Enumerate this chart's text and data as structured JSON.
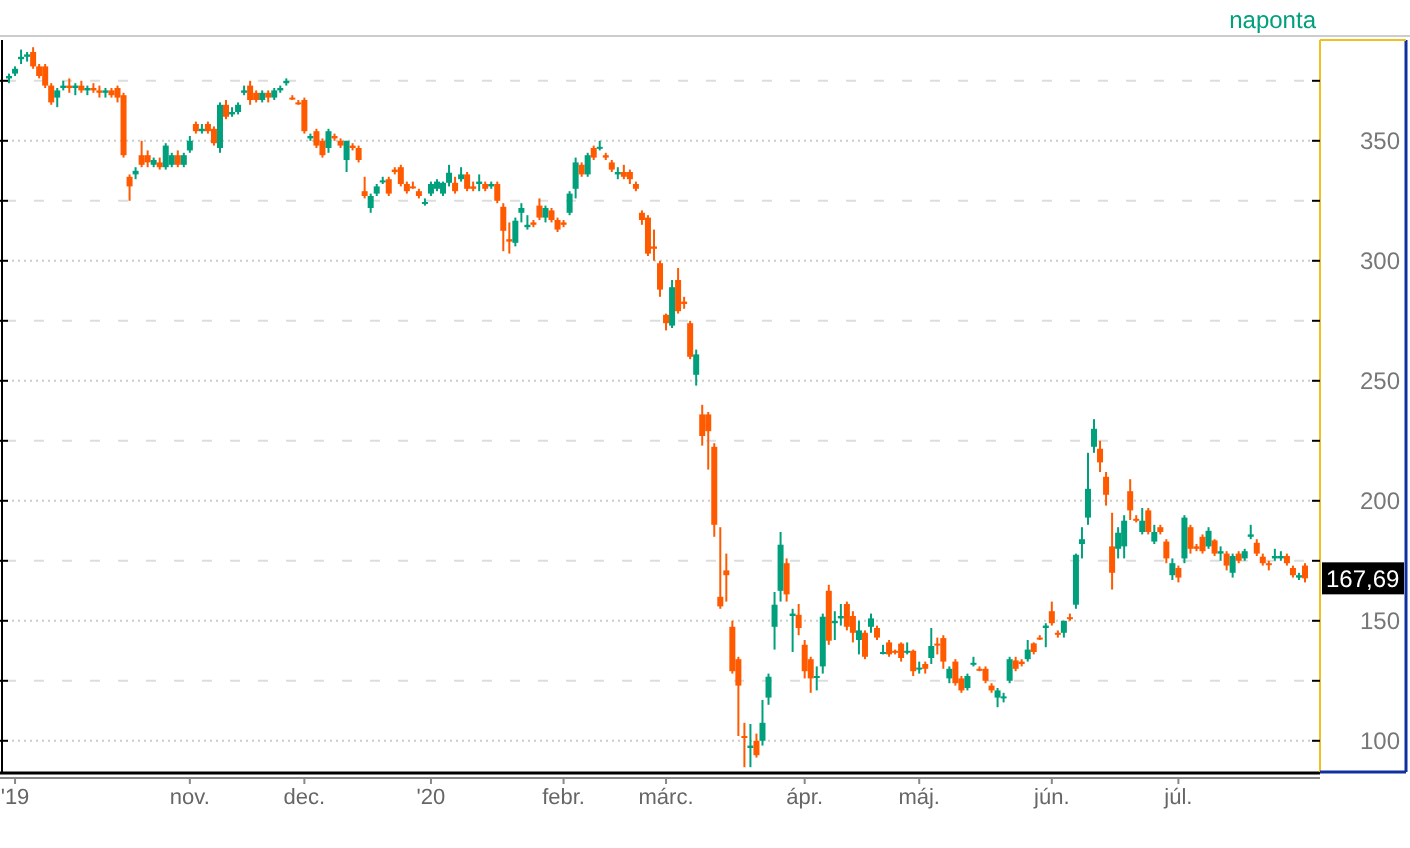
{
  "chart_data": {
    "type": "candlestick",
    "subtitle": "naponta",
    "categories": [
      null,
      "'19",
      null,
      null,
      null,
      null,
      null,
      null,
      null,
      null,
      null,
      null,
      null,
      null,
      null,
      null,
      null,
      null,
      null,
      null,
      null,
      null,
      null,
      null,
      null,
      null,
      null,
      null,
      null,
      null,
      "nov.",
      null,
      null,
      null,
      null,
      null,
      null,
      null,
      null,
      null,
      null,
      null,
      null,
      null,
      null,
      null,
      null,
      null,
      null,
      "dec.",
      null,
      null,
      null,
      null,
      null,
      null,
      null,
      null,
      null,
      null,
      null,
      null,
      null,
      null,
      null,
      null,
      null,
      null,
      null,
      null,
      "'20",
      null,
      null,
      null,
      null,
      null,
      null,
      null,
      null,
      null,
      null,
      null,
      null,
      null,
      null,
      null,
      null,
      null,
      null,
      null,
      null,
      null,
      "febr.",
      null,
      null,
      null,
      null,
      null,
      null,
      null,
      null,
      null,
      null,
      null,
      null,
      null,
      null,
      null,
      null,
      "márc.",
      null,
      null,
      null,
      null,
      null,
      null,
      null,
      null,
      null,
      null,
      null,
      null,
      null,
      null,
      null,
      null,
      null,
      null,
      null,
      null,
      null,
      null,
      "ápr.",
      null,
      null,
      null,
      null,
      null,
      null,
      null,
      null,
      null,
      null,
      null,
      null,
      null,
      null,
      null,
      null,
      null,
      null,
      "máj.",
      null,
      null,
      null,
      null,
      null,
      null,
      null,
      null,
      null,
      null,
      null,
      null,
      null,
      null,
      null,
      null,
      null,
      null,
      null,
      null,
      null,
      "jún.",
      null,
      null,
      null,
      null,
      null,
      null,
      null,
      null,
      null,
      null,
      null,
      null,
      null,
      null,
      null,
      null,
      null,
      null,
      null,
      null,
      "júl.",
      null,
      null,
      null,
      null,
      null,
      null,
      null,
      null,
      null,
      null,
      null,
      null,
      null,
      null,
      null,
      null,
      null,
      null,
      null,
      null,
      null
    ],
    "ohlc": [
      [
        376,
        378,
        374,
        377
      ],
      [
        378,
        381,
        377,
        380
      ],
      [
        384,
        388,
        382,
        385
      ],
      [
        385,
        387,
        383,
        386
      ],
      [
        387,
        389,
        380,
        381
      ],
      [
        381,
        382,
        376,
        377
      ],
      [
        381,
        382,
        372,
        373
      ],
      [
        373,
        374,
        365,
        366
      ],
      [
        368,
        372,
        364,
        371
      ],
      [
        372,
        375,
        371,
        373
      ],
      [
        373,
        376,
        370,
        372
      ],
      [
        372,
        374,
        369,
        373
      ],
      [
        373,
        375,
        370,
        371
      ],
      [
        371,
        373,
        369,
        372
      ],
      [
        372,
        374,
        370,
        371
      ],
      [
        371,
        373,
        368,
        370
      ],
      [
        370,
        372,
        368,
        371
      ],
      [
        371,
        372,
        368,
        369
      ],
      [
        372,
        373,
        366,
        368
      ],
      [
        369,
        370,
        343,
        344
      ],
      [
        335,
        336,
        325,
        331
      ],
      [
        336,
        339,
        334,
        337.5
      ],
      [
        344,
        350,
        339,
        340
      ],
      [
        344,
        346,
        339,
        341
      ],
      [
        340,
        343,
        339,
        342
      ],
      [
        341,
        343,
        338,
        339
      ],
      [
        339,
        349,
        338,
        348
      ],
      [
        340,
        345,
        339,
        344
      ],
      [
        344,
        346,
        339,
        340
      ],
      [
        340,
        345,
        339,
        344
      ],
      [
        346,
        352,
        345,
        350
      ],
      [
        357,
        358,
        353,
        354
      ],
      [
        354,
        357,
        353,
        355
      ],
      [
        357,
        358,
        353,
        354
      ],
      [
        355,
        356,
        348,
        349
      ],
      [
        347,
        366,
        345,
        365
      ],
      [
        365,
        367,
        359,
        360
      ],
      [
        361,
        364,
        360,
        362
      ],
      [
        362,
        366,
        361,
        365
      ],
      [
        370,
        373,
        369,
        371
      ],
      [
        373,
        375,
        365,
        367
      ],
      [
        370,
        371,
        366,
        367
      ],
      [
        367,
        371,
        366,
        370
      ],
      [
        370,
        371,
        366,
        368
      ],
      [
        368,
        372,
        367,
        371
      ],
      [
        371,
        373,
        370,
        372
      ],
      [
        374,
        376,
        373,
        375
      ],
      [
        368,
        369,
        367,
        367.5
      ],
      [
        366,
        367,
        365,
        365.5
      ],
      [
        367,
        368,
        353,
        354
      ],
      [
        351,
        353,
        350,
        352
      ],
      [
        354,
        355,
        347,
        348
      ],
      [
        350,
        351,
        343,
        344
      ],
      [
        347,
        355,
        345,
        354
      ],
      [
        352,
        353,
        350,
        351
      ],
      [
        350,
        351,
        347,
        348
      ],
      [
        342,
        350,
        337,
        350
      ],
      [
        348,
        349,
        346,
        347
      ],
      [
        347,
        348,
        341,
        342
      ],
      [
        329,
        335,
        326,
        327
      ],
      [
        322,
        328,
        320,
        327
      ],
      [
        328,
        332,
        327,
        331
      ],
      [
        333,
        335,
        332,
        333.5
      ],
      [
        334,
        335,
        327,
        328
      ],
      [
        338,
        339,
        336,
        337
      ],
      [
        339,
        340,
        331,
        332
      ],
      [
        332,
        333,
        328,
        329
      ],
      [
        331,
        333,
        330,
        330.5
      ],
      [
        329,
        330,
        326,
        327
      ],
      [
        324,
        326,
        323,
        324.5
      ],
      [
        328,
        333,
        327,
        332
      ],
      [
        330,
        334,
        329,
        333
      ],
      [
        328,
        333,
        327,
        332.5
      ],
      [
        332.5,
        340,
        331,
        336.7
      ],
      [
        332.5,
        335,
        328,
        329
      ],
      [
        334,
        339,
        333,
        336
      ],
      [
        336,
        337,
        329,
        330
      ],
      [
        331,
        333,
        329,
        330
      ],
      [
        332,
        336,
        329,
        333
      ],
      [
        332,
        333,
        329,
        330
      ],
      [
        331,
        333,
        330,
        332
      ],
      [
        332,
        333,
        324,
        325
      ],
      [
        322.5,
        324,
        304,
        312.5
      ],
      [
        309,
        316,
        303,
        308
      ],
      [
        307.5,
        318,
        306,
        316.7
      ],
      [
        320,
        324,
        316,
        322
      ],
      [
        314,
        319,
        313,
        315
      ],
      [
        316,
        317,
        314,
        315
      ],
      [
        323,
        326,
        317,
        318
      ],
      [
        318,
        323,
        316,
        322
      ],
      [
        321,
        322,
        316,
        317
      ],
      [
        317,
        318,
        312,
        313
      ],
      [
        316,
        317,
        314,
        315
      ],
      [
        320,
        329,
        319,
        328
      ],
      [
        330,
        343,
        326,
        341
      ],
      [
        340,
        341,
        335,
        336
      ],
      [
        336,
        345,
        335,
        344
      ],
      [
        347,
        348,
        342,
        343
      ],
      [
        347,
        350,
        346,
        347.5
      ],
      [
        344,
        345,
        342,
        343
      ],
      [
        341,
        342,
        337,
        338
      ],
      [
        336,
        339,
        334,
        337
      ],
      [
        337,
        340,
        334,
        335
      ],
      [
        337,
        338,
        332,
        334
      ],
      [
        332,
        333,
        329,
        330
      ],
      [
        320,
        321,
        315,
        317
      ],
      [
        318,
        319,
        302,
        303
      ],
      [
        306,
        313,
        300,
        305
      ],
      [
        299,
        300,
        285,
        288
      ],
      [
        277.5,
        278,
        271,
        274
      ],
      [
        273,
        292,
        272,
        289
      ],
      [
        292,
        297,
        278,
        279
      ],
      [
        283,
        285,
        280,
        282
      ],
      [
        274,
        275,
        259,
        260
      ],
      [
        252.5,
        263,
        248,
        261
      ],
      [
        236,
        240,
        223,
        227
      ],
      [
        236,
        237,
        213,
        229
      ],
      [
        222.5,
        224,
        185,
        190
      ],
      [
        160,
        189,
        155,
        156
      ],
      [
        171,
        178,
        158,
        169
      ],
      [
        147.5,
        150,
        128,
        129
      ],
      [
        134,
        135,
        102,
        123
      ],
      [
        102,
        107.5,
        89,
        101.7
      ],
      [
        97,
        107,
        89,
        98
      ],
      [
        100,
        103,
        93,
        94
      ],
      [
        100,
        117,
        98,
        107.5
      ],
      [
        118,
        128,
        115,
        126.7
      ],
      [
        147.5,
        162,
        138,
        156.7
      ],
      [
        162.5,
        187,
        158,
        181.7
      ],
      [
        174,
        176,
        158,
        161
      ],
      [
        152,
        155,
        137,
        153
      ],
      [
        152.5,
        157,
        144,
        147
      ],
      [
        140,
        142,
        126,
        129
      ],
      [
        134,
        135,
        120,
        126
      ],
      [
        127,
        131,
        121,
        127
      ],
      [
        131,
        153,
        128,
        151.7
      ],
      [
        162.5,
        165,
        140,
        141.7
      ],
      [
        149,
        154,
        142,
        150
      ],
      [
        151,
        157,
        148,
        152
      ],
      [
        157,
        158,
        146,
        147.5
      ],
      [
        152,
        154,
        141,
        145
      ],
      [
        142,
        150,
        136,
        146
      ],
      [
        145,
        146,
        134,
        135
      ],
      [
        147.5,
        153,
        145,
        151
      ],
      [
        147,
        148,
        142,
        143
      ],
      [
        137,
        140,
        136,
        137
      ],
      [
        141,
        142,
        135,
        136
      ],
      [
        137.5,
        138,
        136,
        137
      ],
      [
        140.5,
        141,
        133,
        134.5
      ],
      [
        137,
        141,
        136,
        137.5
      ],
      [
        137.5,
        138,
        127,
        129
      ],
      [
        130,
        133,
        128,
        130.5
      ],
      [
        132,
        133,
        128,
        130
      ],
      [
        134.5,
        147,
        132,
        139.5
      ],
      [
        140.5,
        143,
        136,
        140
      ],
      [
        142.8,
        144,
        130,
        133
      ],
      [
        126,
        131,
        124,
        130
      ],
      [
        133,
        134,
        123,
        124
      ],
      [
        126,
        127,
        120,
        121
      ],
      [
        122,
        128,
        121,
        127
      ],
      [
        132,
        135,
        131,
        132.5
      ],
      [
        130,
        131,
        129,
        129.5
      ],
      [
        130,
        131,
        124,
        125
      ],
      [
        123,
        124,
        120,
        121
      ],
      [
        118,
        122,
        114,
        121
      ],
      [
        118,
        120,
        116,
        118.5
      ],
      [
        125,
        135,
        124,
        134
      ],
      [
        133.5,
        135,
        129,
        130
      ],
      [
        133,
        134,
        131,
        132
      ],
      [
        134,
        142,
        133,
        138
      ],
      [
        140.6,
        141,
        136,
        137
      ],
      [
        143,
        144,
        142,
        142.5
      ],
      [
        147,
        149,
        139,
        148
      ],
      [
        154,
        158,
        148,
        149
      ],
      [
        145,
        146,
        143,
        144.5
      ],
      [
        145,
        150,
        143,
        150
      ],
      [
        151.5,
        153,
        150,
        151
      ],
      [
        156.7,
        178,
        155,
        177.5
      ],
      [
        182,
        189,
        176,
        184
      ],
      [
        193,
        220,
        190,
        205
      ],
      [
        222.5,
        234,
        220,
        230
      ],
      [
        221.7,
        225,
        212,
        216
      ],
      [
        210,
        212,
        198,
        202.5
      ],
      [
        181,
        195,
        163,
        170
      ],
      [
        180,
        189,
        176,
        186.7
      ],
      [
        181,
        194,
        176,
        191.7
      ],
      [
        204,
        209,
        192,
        196
      ],
      [
        192.5,
        194,
        191,
        192
      ],
      [
        187,
        197,
        186,
        191.7
      ],
      [
        196,
        197,
        186,
        187
      ],
      [
        183,
        190,
        182,
        187
      ],
      [
        189,
        190,
        186,
        187
      ],
      [
        183,
        184,
        174,
        176
      ],
      [
        169,
        176,
        167,
        174
      ],
      [
        172,
        173,
        166,
        168
      ],
      [
        176,
        194,
        174,
        193
      ],
      [
        189,
        190,
        178,
        180
      ],
      [
        181,
        182,
        179,
        180
      ],
      [
        185,
        186,
        178,
        179
      ],
      [
        181,
        189,
        180,
        187.5
      ],
      [
        183.5,
        184,
        177,
        178
      ],
      [
        178,
        181,
        175,
        179
      ],
      [
        178,
        179,
        171,
        173
      ],
      [
        170,
        178,
        168,
        177
      ],
      [
        178,
        179,
        174,
        175
      ],
      [
        176,
        180,
        175,
        179
      ],
      [
        185,
        190,
        184,
        186
      ],
      [
        182.5,
        184,
        177,
        178
      ],
      [
        176.7,
        178,
        173,
        174
      ],
      [
        174,
        175,
        171,
        173.5
      ],
      [
        176,
        180,
        175,
        177
      ],
      [
        176,
        179,
        175,
        177
      ],
      [
        177,
        178,
        173,
        174
      ],
      [
        172,
        173,
        168,
        169
      ],
      [
        168,
        170,
        167,
        169
      ],
      [
        173,
        174,
        166,
        167.69
      ]
    ],
    "colors": [
      "#00a07c",
      "#00a07c",
      "#00a07c",
      "#00a07c",
      "#ff5a00",
      "#ff5a00",
      "#ff5a00",
      "#ff5a00",
      "#00a07c",
      "#00a07c",
      "#ff5a00",
      "#00a07c",
      "#ff5a00",
      "#00a07c",
      "#ff5a00",
      "#ff5a00",
      "#00a07c",
      "#ff5a00",
      "#ff5a00",
      "#ff5a00",
      "#ff5a00",
      "#00a07c",
      "#ff5a00",
      "#ff5a00",
      "#00a07c",
      "#ff5a00",
      "#00a07c",
      "#00a07c",
      "#ff5a00",
      "#00a07c",
      "#00a07c",
      "#ff5a00",
      "#00a07c",
      "#ff5a00",
      "#ff5a00",
      "#00a07c",
      "#ff5a00",
      "#00a07c",
      "#00a07c",
      "#00a07c",
      "#ff5a00",
      "#ff5a00",
      "#00a07c",
      "#ff5a00",
      "#00a07c",
      "#00a07c",
      "#00a07c",
      "#ff5a00",
      "#ff5a00",
      "#ff5a00",
      "#00a07c",
      "#ff5a00",
      "#ff5a00",
      "#00a07c",
      "#ff5a00",
      "#ff5a00",
      "#00a07c",
      "#ff5a00",
      "#ff5a00",
      "#ff5a00",
      "#00a07c",
      "#00a07c",
      "#00a07c",
      "#ff5a00",
      "#ff5a00",
      "#ff5a00",
      "#ff5a00",
      "#ff5a00",
      "#ff5a00",
      "#00a07c",
      "#00a07c",
      "#00a07c",
      "#00a07c",
      "#00a07c",
      "#ff5a00",
      "#00a07c",
      "#ff5a00",
      "#ff5a00",
      "#00a07c",
      "#ff5a00",
      "#00a07c",
      "#ff5a00",
      "#ff5a00",
      "#ff5a00",
      "#00a07c",
      "#00a07c",
      "#00a07c",
      "#ff5a00",
      "#ff5a00",
      "#00a07c",
      "#ff5a00",
      "#ff5a00",
      "#ff5a00",
      "#00a07c",
      "#00a07c",
      "#ff5a00",
      "#00a07c",
      "#ff5a00",
      "#00a07c",
      "#ff5a00",
      "#ff5a00",
      "#00a07c",
      "#ff5a00",
      "#ff5a00",
      "#ff5a00",
      "#ff5a00",
      "#ff5a00",
      "#ff5a00",
      "#ff5a00",
      "#ff5a00",
      "#00a07c",
      "#ff5a00",
      "#ff5a00",
      "#ff5a00",
      "#00a07c",
      "#ff5a00",
      "#ff5a00",
      "#ff5a00",
      "#ff5a00",
      "#ff5a00",
      "#ff5a00",
      "#ff5a00",
      "#ff5a00",
      "#00a07c",
      "#ff5a00",
      "#00a07c",
      "#00a07c",
      "#00a07c",
      "#00a07c",
      "#ff5a00",
      "#00a07c",
      "#ff5a00",
      "#ff5a00",
      "#ff5a00",
      "#00a07c",
      "#00a07c",
      "#ff5a00",
      "#00a07c",
      "#00a07c",
      "#ff5a00",
      "#ff5a00",
      "#00a07c",
      "#ff5a00",
      "#00a07c",
      "#ff5a00",
      "#00a07c",
      "#ff5a00",
      "#ff5a00",
      "#ff5a00",
      "#00a07c",
      "#ff5a00",
      "#00a07c",
      "#ff5a00",
      "#00a07c",
      "#ff5a00",
      "#ff5a00",
      "#00a07c",
      "#ff5a00",
      "#ff5a00",
      "#00a07c",
      "#00a07c",
      "#ff5a00",
      "#ff5a00",
      "#ff5a00",
      "#00a07c",
      "#00a07c",
      "#00a07c",
      "#ff5a00",
      "#ff5a00",
      "#00a07c",
      "#ff5a00",
      "#ff5a00",
      "#00a07c",
      "#ff5a00",
      "#ff5a00",
      "#00a07c",
      "#ff5a00",
      "#00a07c",
      "#00a07c",
      "#00a07c",
      "#00a07c",
      "#ff5a00",
      "#ff5a00",
      "#ff5a00",
      "#00a07c",
      "#00a07c",
      "#ff5a00",
      "#ff5a00",
      "#00a07c",
      "#ff5a00",
      "#00a07c",
      "#ff5a00",
      "#ff5a00",
      "#00a07c",
      "#ff5a00",
      "#00a07c",
      "#ff5a00",
      "#ff5a00",
      "#ff5a00",
      "#00a07c",
      "#ff5a00",
      "#00a07c",
      "#ff5a00",
      "#00a07c",
      "#ff5a00",
      "#00a07c",
      "#00a07c",
      "#ff5a00",
      "#ff5a00",
      "#ff5a00",
      "#00a07c",
      "#00a07c",
      "#ff5a00",
      "#ff5a00",
      "#00a07c",
      "#ff5a00"
    ],
    "ylim": [
      87,
      392
    ],
    "yticks": [
      100,
      {
        "value": 125,
        "label": null
      },
      150,
      {
        "value": 175,
        "label": null
      },
      200,
      {
        "value": 225,
        "label": null
      },
      250,
      {
        "value": 275,
        "label": null
      },
      300,
      {
        "value": 325,
        "label": null
      },
      350,
      {
        "value": 375,
        "label": null
      }
    ],
    "grid": "y",
    "annotations": [
      {
        "text": "167,69",
        "y": 167.69
      }
    ]
  }
}
